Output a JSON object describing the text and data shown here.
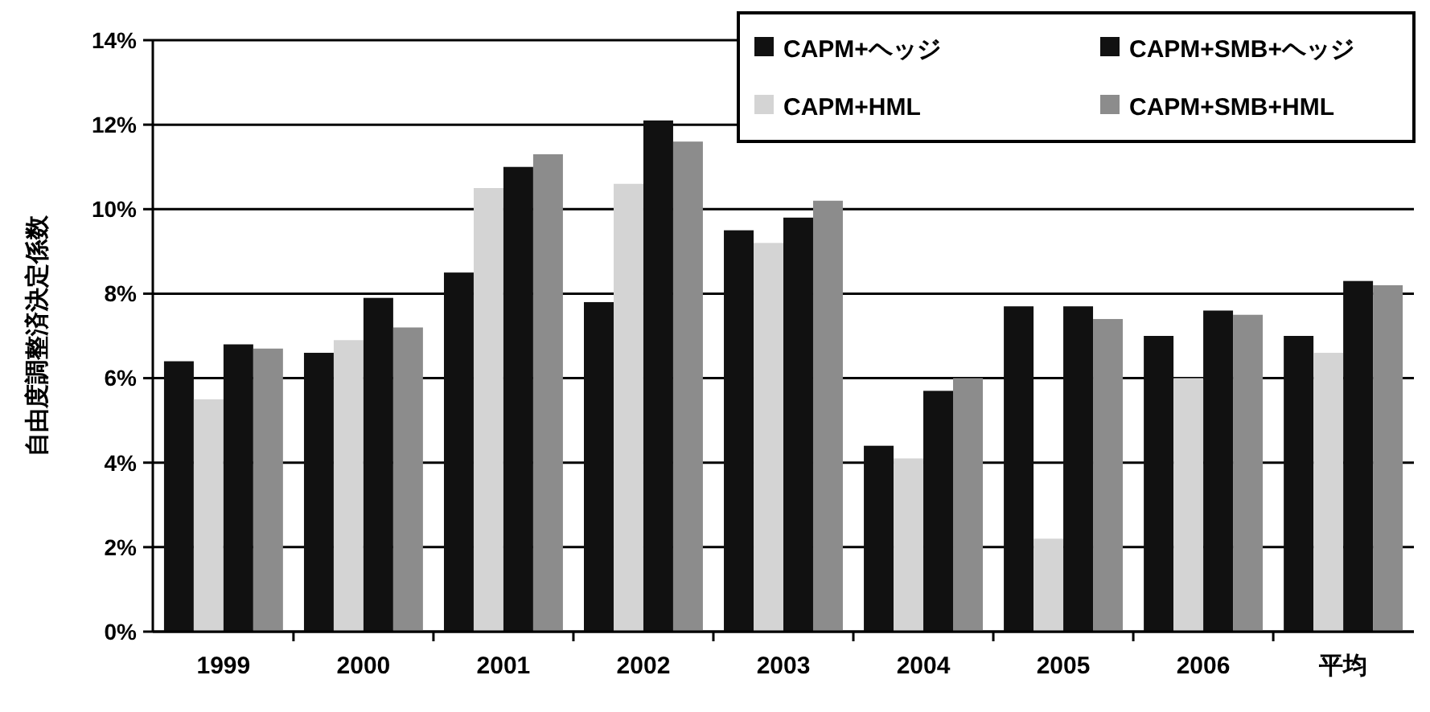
{
  "chart_data": {
    "type": "bar",
    "ylabel": "自由度調整済決定係数",
    "categories": [
      "1999",
      "2000",
      "2001",
      "2002",
      "2003",
      "2004",
      "2005",
      "2006",
      "平均"
    ],
    "series": [
      {
        "name": "CAPM+ヘッジ",
        "color": "#111111",
        "values": [
          6.4,
          6.6,
          8.5,
          7.8,
          9.5,
          4.4,
          7.7,
          7.0,
          7.0
        ]
      },
      {
        "name": "CAPM+HML",
        "color": "#d4d4d4",
        "values": [
          5.5,
          6.9,
          10.5,
          10.6,
          9.2,
          4.1,
          2.2,
          6.0,
          6.6
        ]
      },
      {
        "name": "CAPM+SMB+ヘッジ",
        "color": "#111111",
        "values": [
          6.8,
          7.9,
          11.0,
          12.1,
          9.8,
          5.7,
          7.7,
          7.6,
          8.3
        ]
      },
      {
        "name": "CAPM+SMB+HML",
        "color": "#8c8c8c",
        "values": [
          6.7,
          7.2,
          11.3,
          11.6,
          10.2,
          6.0,
          7.4,
          7.5,
          8.2
        ]
      }
    ],
    "ylim": [
      0,
      14
    ],
    "yticks": [
      {
        "value": 0,
        "label": "0%"
      },
      {
        "value": 2,
        "label": "2%"
      },
      {
        "value": 4,
        "label": "4%"
      },
      {
        "value": 6,
        "label": "6%"
      },
      {
        "value": 8,
        "label": "8%"
      },
      {
        "value": 10,
        "label": "10%"
      },
      {
        "value": 12,
        "label": "12%"
      },
      {
        "value": 14,
        "label": "14%"
      }
    ],
    "grid": "y",
    "legend": "top right"
  }
}
